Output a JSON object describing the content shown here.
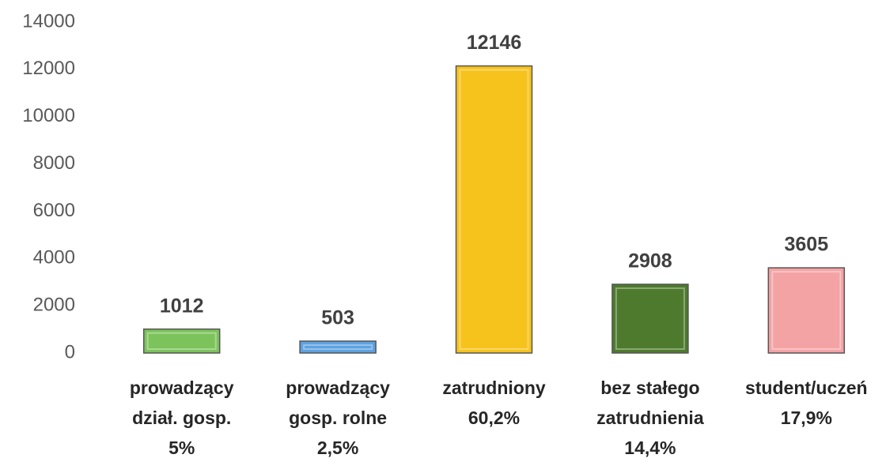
{
  "chart_data": {
    "type": "bar",
    "categories": [
      [
        "prowadzący",
        "dział. gosp.",
        "5%"
      ],
      [
        "prowadzący",
        "gosp. rolne",
        "2,5%"
      ],
      [
        "zatrudniony",
        "60,2%"
      ],
      [
        "bez stałego",
        "zatrudnienia",
        "14,4%"
      ],
      [
        "student/uczeń",
        "17,9%"
      ]
    ],
    "values": [
      1012,
      503,
      12146,
      2908,
      3605
    ],
    "colors": [
      "#7cc35b",
      "#5ea2e0",
      "#f6c21c",
      "#4d7a2c",
      "#f4a3a5"
    ],
    "ylim": [
      0,
      14000
    ],
    "yticks": [
      0,
      2000,
      4000,
      6000,
      8000,
      10000,
      12000,
      14000
    ],
    "grid": false
  }
}
